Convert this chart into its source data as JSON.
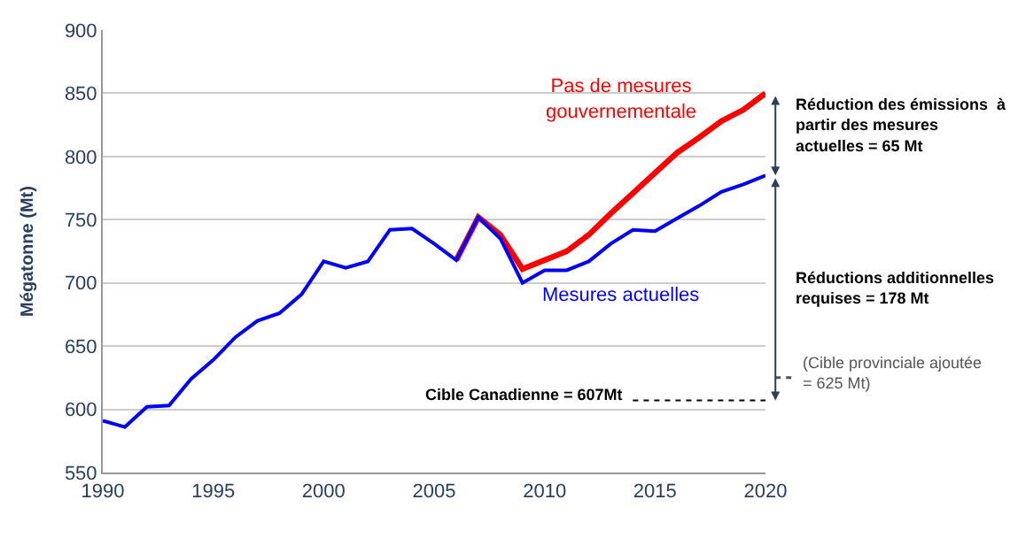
{
  "chart_data": {
    "type": "line",
    "ylabel": "Mégatonne (Mt)",
    "x": [
      1990,
      1991,
      1992,
      1993,
      1994,
      1995,
      1996,
      1997,
      1998,
      1999,
      2000,
      2001,
      2002,
      2003,
      2004,
      2005,
      2006,
      2007,
      2008,
      2009,
      2010,
      2011,
      2012,
      2013,
      2014,
      2015,
      2016,
      2017,
      2018,
      2019,
      2020
    ],
    "series": [
      {
        "name": "Pas de mesures gouvernementale",
        "color": "#ff0000",
        "x": [
          2006,
          2007,
          2008,
          2009,
          2010,
          2011,
          2012,
          2013,
          2014,
          2015,
          2016,
          2017,
          2018,
          2019,
          2020
        ],
        "values": [
          718,
          752,
          738,
          711,
          718,
          725,
          738,
          755,
          771,
          787,
          803,
          815,
          828,
          837,
          850
        ]
      },
      {
        "name": "Mesures actuelles",
        "color": "#0000ff",
        "values": [
          591,
          586,
          602,
          603,
          624,
          639,
          657,
          670,
          676,
          691,
          717,
          712,
          717,
          742,
          743,
          731,
          718,
          752,
          735,
          700,
          710,
          710,
          717,
          731,
          742,
          741,
          751,
          761,
          772,
          778,
          785
        ]
      }
    ],
    "annotations": [
      "Réduction des émissions  à partir des mesures actuelles = 65 Mt",
      "Réductions additionnelles requises = 178 Mt"
    ],
    "ref_lines": [
      {
        "axis": "y",
        "value": 625,
        "label": "(Cible provinciale ajoutée = 625 Mt)",
        "color": "#555555",
        "line_style": "dotted"
      },
      {
        "axis": "y",
        "value": 607,
        "label": "Cible Canadienne = 607Mt",
        "color": "#000000",
        "line_style": "dotted"
      }
    ],
    "xlim": [
      1990,
      2020
    ],
    "xticks": [
      1990,
      1995,
      2000,
      2005,
      2010,
      2015,
      2020
    ],
    "ylim": [
      550,
      900
    ],
    "yticks": [
      550,
      600,
      650,
      700,
      750,
      800,
      850,
      900
    ],
    "grid": "y",
    "legend": false,
    "marker": "none",
    "line_style": "solid"
  }
}
